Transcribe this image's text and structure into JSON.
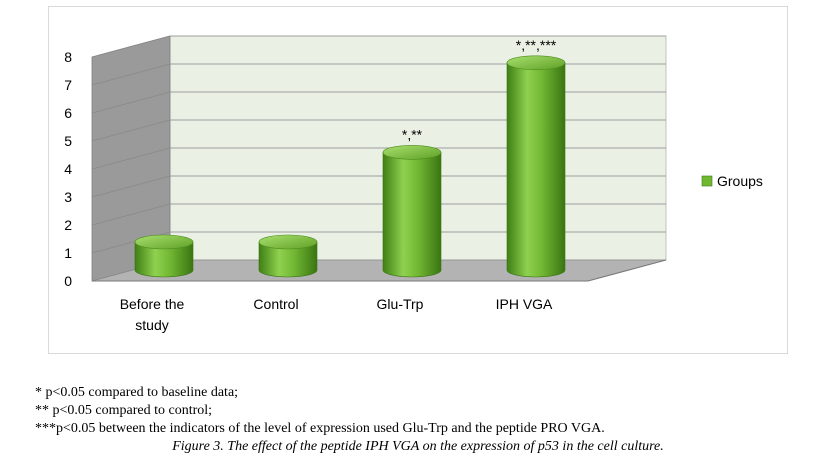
{
  "chart_data": {
    "type": "bar",
    "categories": [
      "Before the study",
      "Control",
      "Glu-Trp",
      "IPH VGA"
    ],
    "series": [
      {
        "name": "Groups",
        "values": [
          1.0,
          1.0,
          4.2,
          7.4
        ],
        "color": "#70b830"
      }
    ],
    "annotations": [
      "",
      "",
      "*,**",
      "*,**,***"
    ],
    "yticks": [
      "0",
      "1",
      "2",
      "3",
      "4",
      "5",
      "6",
      "7",
      "8"
    ],
    "ylim": [
      0,
      8
    ],
    "grid": true,
    "legend_position": "right",
    "style": "3d-cylinder"
  },
  "footnotes": [
    "* p<0.05 compared to baseline data;",
    "** p<0.05 compared to control;",
    "***p<0.05 between the indicators of the level of expression used Glu-Trp and the peptide PRO VGA."
  ],
  "caption": "Figure 3. The effect of the peptide IPH VGA on the expression of p53 in the cell culture."
}
